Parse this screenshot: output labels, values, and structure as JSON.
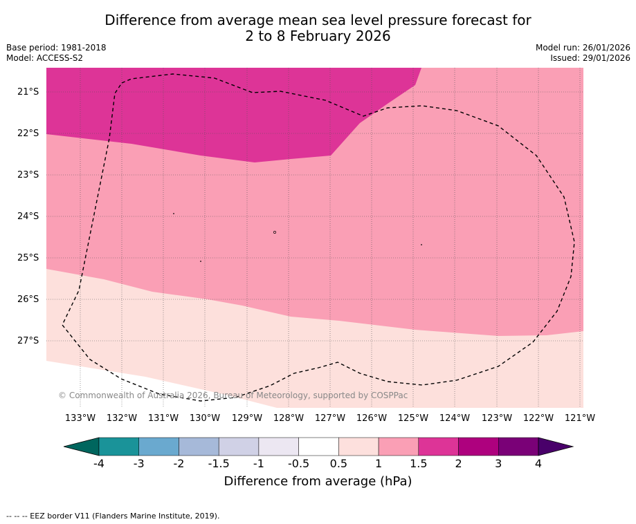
{
  "title": {
    "line1": "Difference from average mean sea level pressure forecast for",
    "line2": "2 to 8 February 2026"
  },
  "meta": {
    "base_period": "Base period: 1981-2018",
    "model": "Model: ACCESS-S2",
    "model_run": "Model run: 26/01/2026",
    "issued": "Issued: 29/01/2026"
  },
  "map": {
    "lat_labels": [
      "21°S",
      "22°S",
      "23°S",
      "24°S",
      "25°S",
      "26°S",
      "27°S"
    ],
    "lon_labels": [
      "133°W",
      "132°W",
      "131°W",
      "130°W",
      "129°W",
      "128°W",
      "127°W",
      "126°W",
      "125°W",
      "124°W",
      "123°W",
      "122°W",
      "121°W"
    ],
    "copyright": "© Commonwealth of Australia 2026, Bureau of Meteorology, supported by COSPPac",
    "colors": {
      "band_0_5_1": "#fde0dc",
      "band_1_1_5": "#fa9fb5",
      "band_1_5_2": "#dd3497",
      "eez_line": "#000000"
    }
  },
  "colorbar": {
    "labels": [
      "-4",
      "-3",
      "-2",
      "-1.5",
      "-1",
      "-0.5",
      "0.5",
      "1",
      "1.5",
      "2",
      "3",
      "4"
    ],
    "colors": [
      "#1d7f7a",
      "#1a9399",
      "#6aa9cf",
      "#a6b9d9",
      "#d0d1e6",
      "#ece7f2",
      "#ffffff",
      "#fde0dd",
      "#fa9fb5",
      "#dd3497",
      "#ae017e",
      "#7a0177"
    ],
    "ext_low": "#00665e",
    "ext_high": "#49006a",
    "title": "Difference from average (hPa)"
  },
  "legend": {
    "eez_label": "--  --  -- EEZ border V11 (Flanders Marine Institute, 2019)."
  }
}
